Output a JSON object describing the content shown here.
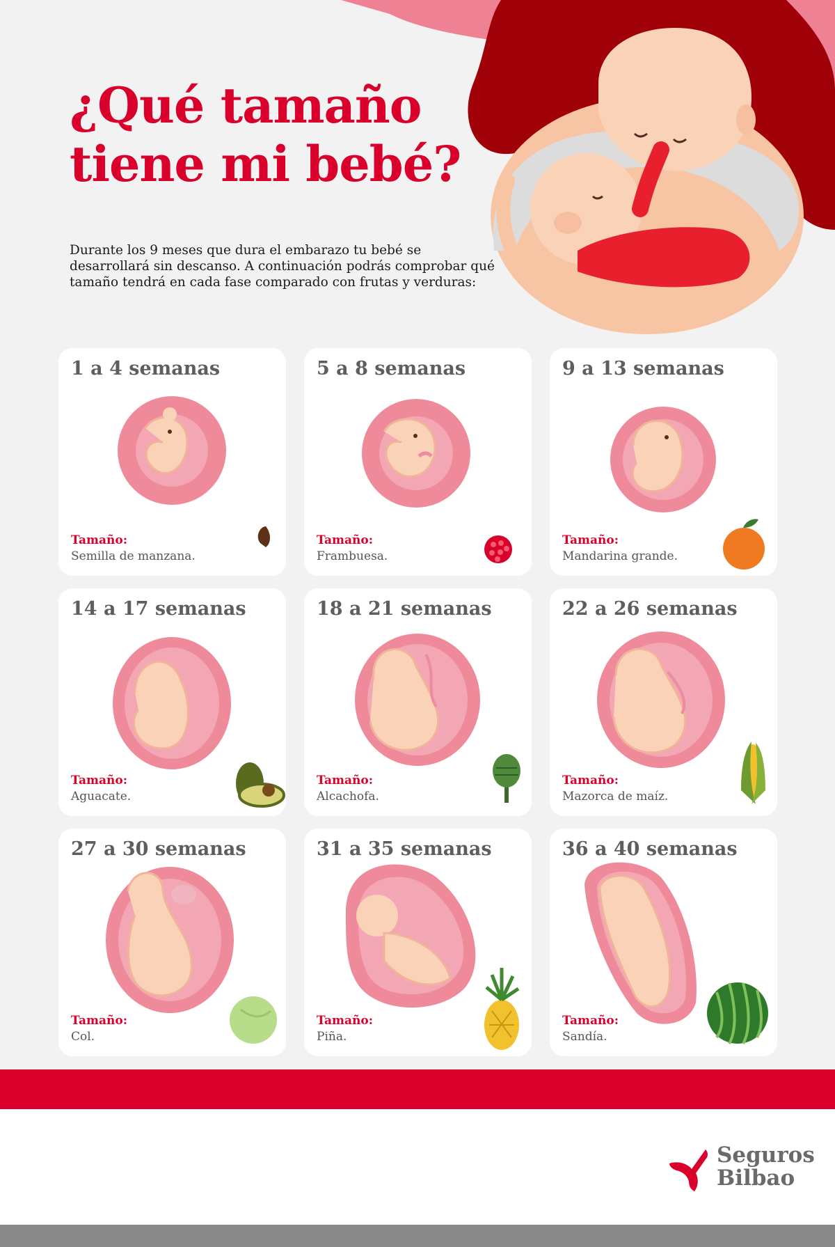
{
  "header": {
    "title_line1": "¿Qué tamaño",
    "title_line2": "tiene mi bebé?",
    "intro_line1": "Durante los 9 meses que dura el embarazo tu bebé se",
    "intro_line2": "desarrollará sin descanso. A continuación podrás comprobar qué",
    "intro_line3": "tamaño tendrá en cada fase comparado con frutas y verduras:"
  },
  "size_label": "Tamaño:",
  "stages": [
    {
      "weeks": "1 a 4 semanas",
      "size": "Semilla de manzana.",
      "icon": "apple-seed-icon"
    },
    {
      "weeks": "5 a 8 semanas",
      "size": "Frambuesa.",
      "icon": "raspberry-icon"
    },
    {
      "weeks": "9 a 13 semanas",
      "size": "Mandarina grande.",
      "icon": "tangerine-icon"
    },
    {
      "weeks": "14 a 17 semanas",
      "size": "Aguacate.",
      "icon": "avocado-icon"
    },
    {
      "weeks": "18 a 21 semanas",
      "size": "Alcachofa.",
      "icon": "artichoke-icon"
    },
    {
      "weeks": "22 a 26 semanas",
      "size": "Mazorca de maíz.",
      "icon": "corn-icon"
    },
    {
      "weeks": "27 a 30 semanas",
      "size": "Col.",
      "icon": "cabbage-icon"
    },
    {
      "weeks": "31 a 35 semanas",
      "size": "Piña.",
      "icon": "pineapple-icon"
    },
    {
      "weeks": "36 a 40 semanas",
      "size": "Sandía.",
      "icon": "watermelon-icon"
    }
  ],
  "brand": {
    "line1": "Seguros",
    "line2": "Bilbao",
    "accent_color": "#d9002b",
    "text_color": "#6a6a6a"
  }
}
